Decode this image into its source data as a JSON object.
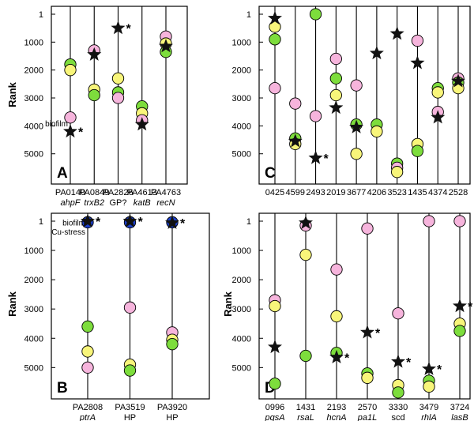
{
  "colors": {
    "pink": "#f6b4dc",
    "yellow": "#f8f57a",
    "green": "#7ddd3c",
    "blue": "#1c3fc8",
    "star": "#111111",
    "line": "#000000"
  },
  "chart_data": [
    {
      "type": "scatter",
      "panel_label": "A",
      "ylabel": "Rank",
      "ylim": [
        5800,
        1
      ],
      "yticks": [
        1,
        1000,
        2000,
        3000,
        4000,
        5000
      ],
      "ytick_labels": [
        "1",
        "1000",
        "2000",
        "3000",
        "4000",
        "5000"
      ],
      "columns": [
        {
          "label": "PA0140",
          "sublabel": "ahpF",
          "sublabel_italic": true,
          "points": [
            {
              "color": "green",
              "rank": 1800
            },
            {
              "color": "yellow",
              "rank": 2000
            },
            {
              "color": "pink",
              "rank": 3700
            }
          ],
          "star": {
            "rank": 4200,
            "asterisk": true
          },
          "annotations": [
            {
              "text": "biofilm",
              "rank": 3900
            }
          ]
        },
        {
          "label": "PA0849",
          "sublabel": "trxB2",
          "sublabel_italic": true,
          "points": [
            {
              "color": "pink",
              "rank": 1300
            },
            {
              "color": "yellow",
              "rank": 2700
            },
            {
              "color": "green",
              "rank": 2900
            }
          ],
          "star": {
            "rank": 1450,
            "asterisk": false
          }
        },
        {
          "label": "PA2826",
          "sublabel": "GP?",
          "sublabel_italic": false,
          "points": [
            {
              "color": "yellow",
              "rank": 2300
            },
            {
              "color": "green",
              "rank": 2800
            },
            {
              "color": "pink",
              "rank": 3000
            }
          ],
          "star": {
            "rank": 500,
            "asterisk": true
          }
        },
        {
          "label": "PA4613",
          "sublabel": "katB",
          "sublabel_italic": true,
          "points": [
            {
              "color": "green",
              "rank": 3300
            },
            {
              "color": "yellow",
              "rank": 3550
            },
            {
              "color": "pink",
              "rank": 3800
            }
          ],
          "star": {
            "rank": 3950,
            "asterisk": false
          }
        },
        {
          "label": "PA4763",
          "sublabel": "recN",
          "sublabel_italic": true,
          "points": [
            {
              "color": "pink",
              "rank": 800
            },
            {
              "color": "yellow",
              "rank": 1050
            },
            {
              "color": "green",
              "rank": 1350
            }
          ],
          "star": {
            "rank": 1150,
            "asterisk": false
          }
        }
      ]
    },
    {
      "type": "scatter",
      "panel_label": "B",
      "ylabel": "Rank",
      "ylim": [
        5800,
        1
      ],
      "yticks": [
        1,
        1000,
        2000,
        3000,
        4000,
        5000
      ],
      "ytick_labels": [
        "1",
        "1000",
        "2000",
        "3000",
        "4000",
        "5000"
      ],
      "columns": [
        {
          "label": "PA2808",
          "sublabel": "ptrA",
          "sublabel_italic": true,
          "points": [
            {
              "color": "blue",
              "rank": 40
            },
            {
              "color": "green",
              "rank": 3600
            },
            {
              "color": "yellow",
              "rank": 4450
            },
            {
              "color": "pink",
              "rank": 5000
            }
          ],
          "star": {
            "rank": 1,
            "asterisk": true
          },
          "annotations": [
            {
              "text": "biofilm",
              "rank": 40
            },
            {
              "text": "Cu-stress",
              "rank": 350
            }
          ]
        },
        {
          "label": "PA3519",
          "sublabel": "HP",
          "sublabel_italic": false,
          "points": [
            {
              "color": "blue",
              "rank": 40
            },
            {
              "color": "pink",
              "rank": 2950
            },
            {
              "color": "yellow",
              "rank": 4900
            },
            {
              "color": "green",
              "rank": 5100
            }
          ],
          "star": {
            "rank": 1,
            "asterisk": true
          }
        },
        {
          "label": "PA3920",
          "sublabel": "HP",
          "sublabel_italic": false,
          "points": [
            {
              "color": "blue",
              "rank": 40
            },
            {
              "color": "pink",
              "rank": 3800
            },
            {
              "color": "yellow",
              "rank": 4050
            },
            {
              "color": "green",
              "rank": 4200
            }
          ],
          "star": {
            "rank": 60,
            "asterisk": true
          }
        }
      ]
    },
    {
      "type": "scatter",
      "panel_label": "C",
      "ylabel": "",
      "ylim": [
        5800,
        1
      ],
      "yticks": [
        1,
        1000,
        2000,
        3000,
        4000,
        5000
      ],
      "ytick_labels": [
        "1",
        "1000",
        "2000",
        "3000",
        "4000",
        "5000"
      ],
      "columns": [
        {
          "label": "0425",
          "sublabel": "",
          "points": [
            {
              "color": "yellow",
              "rank": 450
            },
            {
              "color": "green",
              "rank": 900
            },
            {
              "color": "pink",
              "rank": 2650
            }
          ],
          "star": {
            "rank": 150,
            "asterisk": false
          }
        },
        {
          "label": "4599",
          "sublabel": "",
          "points": [
            {
              "color": "pink",
              "rank": 3200
            },
            {
              "color": "green",
              "rank": 4450
            },
            {
              "color": "yellow",
              "rank": 4650
            }
          ],
          "star": {
            "rank": 4550,
            "asterisk": false
          }
        },
        {
          "label": "2493",
          "sublabel": "",
          "points": [
            {
              "color": "green",
              "rank": 1
            },
            {
              "color": "pink",
              "rank": 3650
            }
          ],
          "star": {
            "rank": 5150,
            "asterisk": true
          }
        },
        {
          "label": "2019",
          "sublabel": "",
          "points": [
            {
              "color": "pink",
              "rank": 1600
            },
            {
              "color": "green",
              "rank": 2300
            },
            {
              "color": "yellow",
              "rank": 2900
            }
          ],
          "star": {
            "rank": 3350,
            "asterisk": false
          }
        },
        {
          "label": "3677",
          "sublabel": "",
          "points": [
            {
              "color": "pink",
              "rank": 2550
            },
            {
              "color": "green",
              "rank": 3950
            },
            {
              "color": "yellow",
              "rank": 5000
            }
          ],
          "star": {
            "rank": 4050,
            "asterisk": false
          }
        },
        {
          "label": "4206",
          "sublabel": "",
          "points": [
            {
              "color": "green",
              "rank": 3950
            },
            {
              "color": "yellow",
              "rank": 4200
            }
          ],
          "star": {
            "rank": 1400,
            "asterisk": false
          }
        },
        {
          "label": "3523",
          "sublabel": "",
          "points": [
            {
              "color": "green",
              "rank": 5350
            },
            {
              "color": "pink",
              "rank": 5500
            },
            {
              "color": "yellow",
              "rank": 5650
            }
          ],
          "star": {
            "rank": 700,
            "asterisk": false
          }
        },
        {
          "label": "1435",
          "sublabel": "",
          "points": [
            {
              "color": "pink",
              "rank": 950
            },
            {
              "color": "yellow",
              "rank": 4650
            },
            {
              "color": "green",
              "rank": 4900
            }
          ],
          "star": {
            "rank": 1750,
            "asterisk": false
          }
        },
        {
          "label": "4374",
          "sublabel": "",
          "points": [
            {
              "color": "green",
              "rank": 2650
            },
            {
              "color": "yellow",
              "rank": 2800
            },
            {
              "color": "pink",
              "rank": 3500
            }
          ],
          "star": {
            "rank": 3700,
            "asterisk": false
          }
        },
        {
          "label": "2528",
          "sublabel": "",
          "points": [
            {
              "color": "pink",
              "rank": 2300
            },
            {
              "color": "green",
              "rank": 2450
            },
            {
              "color": "yellow",
              "rank": 2650
            }
          ],
          "star": {
            "rank": 2400,
            "asterisk": false
          }
        }
      ]
    },
    {
      "type": "scatter",
      "panel_label": "D",
      "ylabel": "Rank",
      "ylim": [
        5800,
        1
      ],
      "yticks": [
        1,
        1000,
        2000,
        3000,
        4000,
        5000
      ],
      "ytick_labels": [
        "1",
        "1000",
        "2000",
        "3000",
        "4000",
        "5000"
      ],
      "columns": [
        {
          "label": "0996",
          "sublabel": "pqsA",
          "sublabel_italic": true,
          "points": [
            {
              "color": "pink",
              "rank": 2700
            },
            {
              "color": "yellow",
              "rank": 2900
            },
            {
              "color": "green",
              "rank": 5550
            }
          ],
          "star": {
            "rank": 4300,
            "asterisk": false
          }
        },
        {
          "label": "1431",
          "sublabel": "rsaL",
          "sublabel_italic": true,
          "points": [
            {
              "color": "pink",
              "rank": 150
            },
            {
              "color": "yellow",
              "rank": 1150
            },
            {
              "color": "green",
              "rank": 4600
            }
          ],
          "star": {
            "rank": 60,
            "asterisk": false
          }
        },
        {
          "label": "2193",
          "sublabel": "hcnA",
          "sublabel_italic": true,
          "points": [
            {
              "color": "pink",
              "rank": 1650
            },
            {
              "color": "yellow",
              "rank": 3250
            },
            {
              "color": "green",
              "rank": 4500
            }
          ],
          "star": {
            "rank": 4650,
            "asterisk": true
          }
        },
        {
          "label": "2570",
          "sublabel": "pa1L",
          "sublabel_italic": true,
          "points": [
            {
              "color": "pink",
              "rank": 250
            },
            {
              "color": "green",
              "rank": 5200
            },
            {
              "color": "yellow",
              "rank": 5350
            }
          ],
          "star": {
            "rank": 3800,
            "asterisk": true
          }
        },
        {
          "label": "3330",
          "sublabel": "scd",
          "sublabel_italic": false,
          "points": [
            {
              "color": "pink",
              "rank": 3150
            },
            {
              "color": "yellow",
              "rank": 5600
            },
            {
              "color": "green",
              "rank": 5850
            }
          ],
          "star": {
            "rank": 4800,
            "asterisk": true
          }
        },
        {
          "label": "3479",
          "sublabel": "rhlA",
          "sublabel_italic": true,
          "points": [
            {
              "color": "pink",
              "rank": 1
            },
            {
              "color": "green",
              "rank": 5450
            },
            {
              "color": "yellow",
              "rank": 5650
            }
          ],
          "star": {
            "rank": 5050,
            "asterisk": true
          }
        },
        {
          "label": "3724",
          "sublabel": "lasB",
          "sublabel_italic": true,
          "points": [
            {
              "color": "pink",
              "rank": 1
            },
            {
              "color": "yellow",
              "rank": 3500
            },
            {
              "color": "green",
              "rank": 3750
            }
          ],
          "star": {
            "rank": 2900,
            "asterisk": true
          }
        }
      ]
    }
  ]
}
